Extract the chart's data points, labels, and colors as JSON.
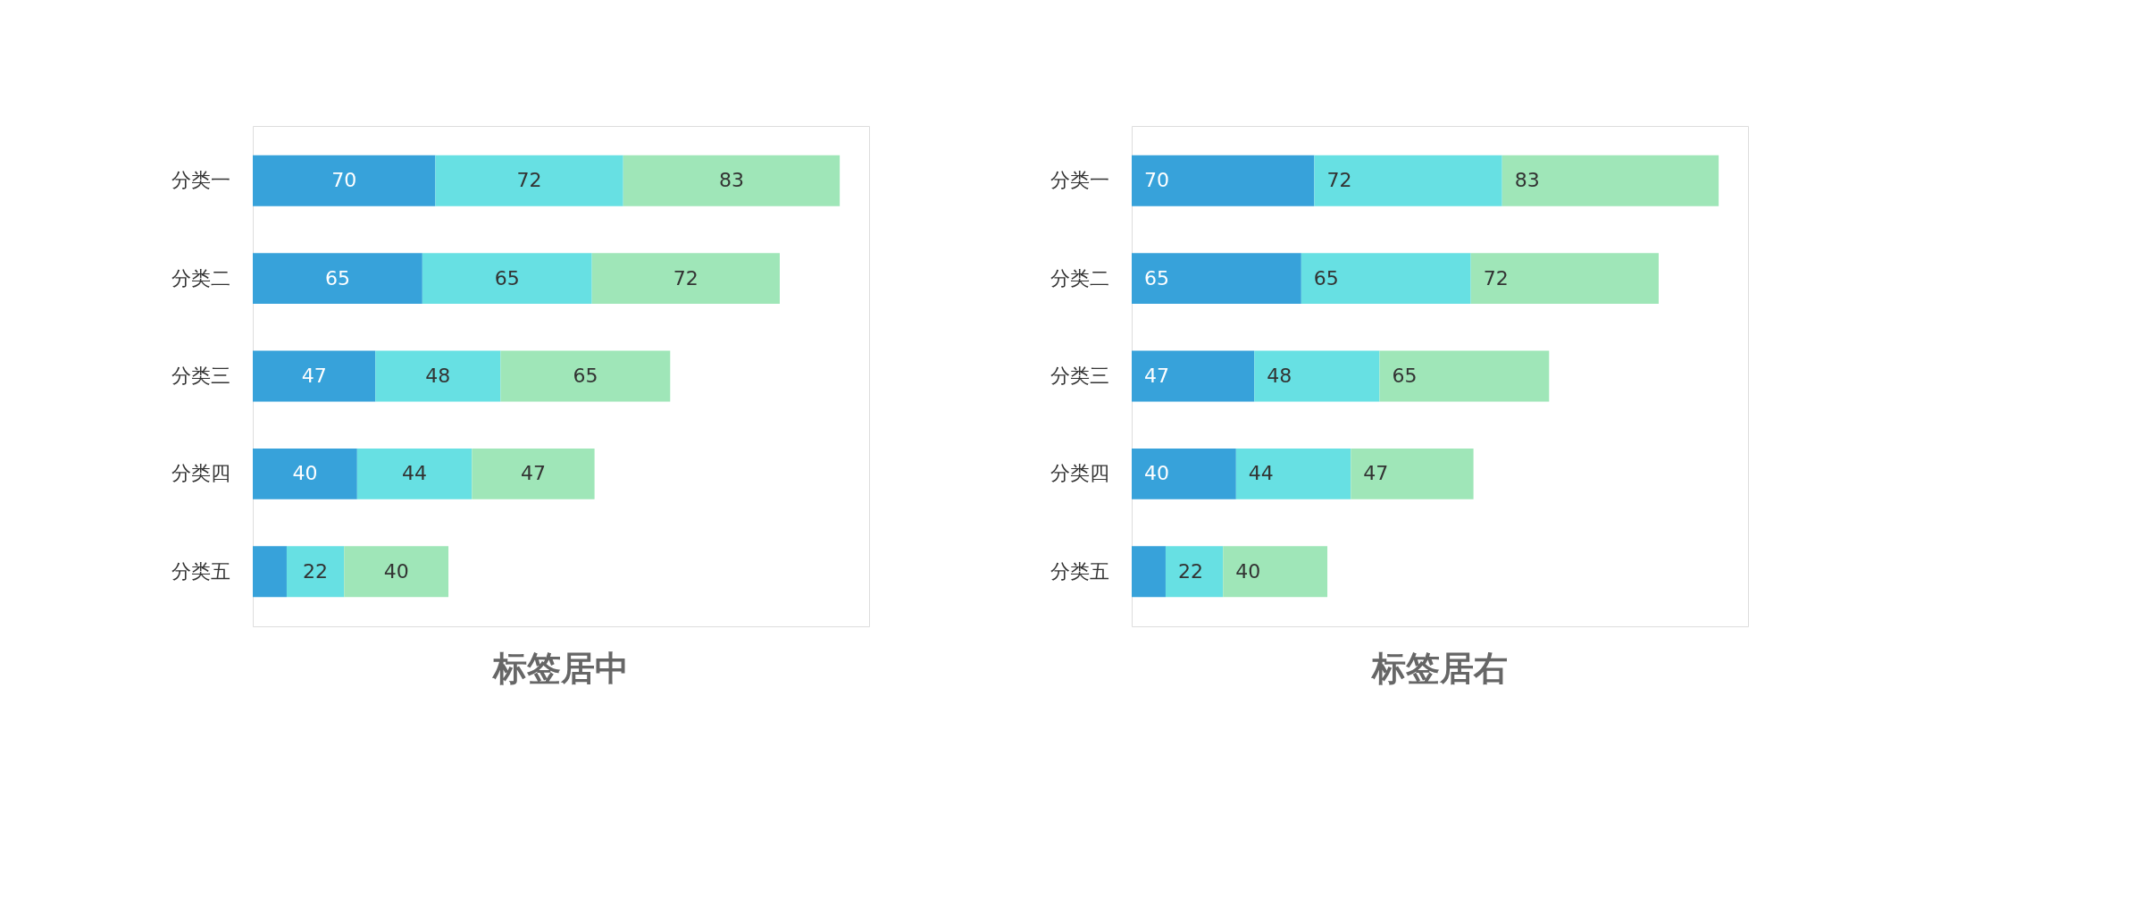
{
  "chart_data": [
    {
      "type": "bar",
      "orientation": "horizontal",
      "stacked": true,
      "title": "标签居中",
      "categories": [
        "分类一",
        "分类二",
        "分类三",
        "分类四",
        "分类五"
      ],
      "grid": false,
      "tick_labels": "y",
      "series": [
        {
          "color": "#37a2da",
          "values": [
            70,
            65,
            47,
            40,
            13
          ],
          "value_labels": [
            "70",
            "65",
            "47",
            "40",
            null
          ]
        },
        {
          "color": "#67e0e3",
          "values": [
            72,
            65,
            48,
            44,
            22
          ],
          "value_labels": [
            "72",
            "65",
            "48",
            "44",
            "22"
          ]
        },
        {
          "color": "#9fe6b8",
          "values": [
            83,
            72,
            65,
            47,
            40
          ],
          "value_labels": [
            "83",
            "72",
            "65",
            "47",
            "40"
          ]
        }
      ]
    },
    {
      "type": "bar",
      "orientation": "horizontal",
      "stacked": true,
      "title": "标签居右",
      "categories": [
        "分类一",
        "分类二",
        "分类三",
        "分类四",
        "分类五"
      ],
      "grid": false,
      "tick_labels": "y",
      "series": [
        {
          "color": "#37a2da",
          "values": [
            70,
            65,
            47,
            40,
            13
          ],
          "value_labels": [
            "70",
            "65",
            "47",
            "40",
            null
          ]
        },
        {
          "color": "#67e0e3",
          "values": [
            72,
            65,
            48,
            44,
            22
          ],
          "value_labels": [
            "72",
            "65",
            "48",
            "44",
            "22"
          ]
        },
        {
          "color": "#9fe6b8",
          "values": [
            83,
            72,
            65,
            47,
            40
          ],
          "value_labels": [
            "83",
            "72",
            "65",
            "47",
            "40"
          ]
        }
      ]
    }
  ]
}
